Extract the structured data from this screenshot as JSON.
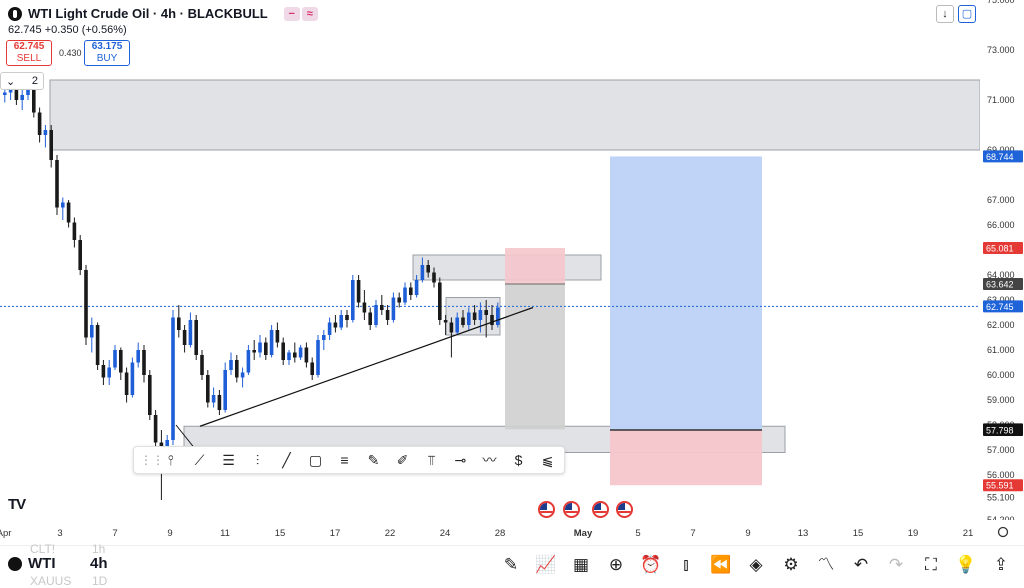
{
  "header": {
    "title": "WTI Light Crude Oil · 4h · BLACKBULL",
    "change_line": "62.745  +0.350 (+0.56%)",
    "sell_price": "62.745",
    "sell_label": "SELL",
    "spread": "0.430",
    "buy_price": "63.175",
    "buy_label": "BUY",
    "interval_count": "2",
    "icons": [
      "indicator-icon",
      "compare-icon"
    ]
  },
  "top_right": {
    "down_icon": "↓",
    "fullscreen_icon": "▢"
  },
  "colors": {
    "up": "#1e5fd8",
    "down": "#1a1a1a",
    "zone_fill": "#dcdde0",
    "target": "#bcd2f7",
    "stop": "#f5c6cc",
    "accent": "#1e63d8",
    "red_label": "#e53935"
  },
  "chart_data": {
    "type": "candlestick",
    "symbol": "WTI Light Crude Oil",
    "timeframe": "4h",
    "y_axis": {
      "ylim": [
        54.2,
        75.0
      ],
      "ticks": [
        "75.000",
        "73.000",
        "71.000",
        "69.000",
        "67.000",
        "66.000",
        "65.000",
        "64.000",
        "63.000",
        "62.000",
        "61.000",
        "60.000",
        "59.000",
        "58.000",
        "57.000",
        "56.000",
        "55.100",
        "54.200"
      ]
    },
    "x_axis": {
      "ticks": [
        "Apr",
        "3",
        "7",
        "9",
        "11",
        "15",
        "17",
        "22",
        "24",
        "28",
        "May",
        "5",
        "7",
        "9",
        "13",
        "15",
        "19",
        "21"
      ]
    },
    "price_labels": [
      {
        "text": "68.744",
        "value": 68.744,
        "color": "#1e63d8"
      },
      {
        "text": "65.081",
        "value": 65.081,
        "color": "#e53935"
      },
      {
        "text": "63.642",
        "value": 63.642,
        "color": "#444444"
      },
      {
        "text": "62.745",
        "value": 62.745,
        "color": "#1e63d8"
      },
      {
        "text": "57.825",
        "value": 57.825,
        "color": "#111111"
      },
      {
        "text": "57.798",
        "value": 57.798,
        "color": "#111111"
      },
      {
        "text": "55.591",
        "value": 55.591,
        "color": "#e53935"
      }
    ],
    "current_price": 62.745,
    "candles": [
      [
        71.2,
        71.6,
        70.9,
        71.3
      ],
      [
        71.3,
        71.9,
        71.0,
        71.5
      ],
      [
        71.5,
        71.7,
        70.8,
        71.0
      ],
      [
        71.0,
        71.4,
        70.6,
        71.2
      ],
      [
        71.2,
        72.0,
        71.0,
        71.6
      ],
      [
        71.6,
        71.8,
        70.3,
        70.5
      ],
      [
        70.5,
        70.7,
        69.3,
        69.6
      ],
      [
        69.6,
        70.0,
        69.1,
        69.8
      ],
      [
        69.8,
        70.0,
        68.3,
        68.6
      ],
      [
        68.6,
        68.8,
        66.4,
        66.7
      ],
      [
        66.7,
        67.1,
        66.2,
        66.9
      ],
      [
        66.9,
        67.0,
        65.9,
        66.1
      ],
      [
        66.1,
        66.3,
        65.1,
        65.4
      ],
      [
        65.4,
        65.6,
        64.0,
        64.2
      ],
      [
        64.2,
        64.4,
        61.2,
        61.5
      ],
      [
        61.5,
        62.3,
        60.9,
        62.0
      ],
      [
        62.0,
        62.1,
        60.2,
        60.4
      ],
      [
        60.4,
        60.6,
        59.6,
        59.9
      ],
      [
        59.9,
        60.6,
        59.6,
        60.3
      ],
      [
        60.3,
        61.2,
        60.2,
        61.0
      ],
      [
        61.0,
        61.1,
        59.8,
        60.1
      ],
      [
        60.1,
        60.3,
        58.9,
        59.2
      ],
      [
        59.2,
        60.7,
        59.1,
        60.5
      ],
      [
        60.5,
        61.3,
        60.3,
        61.0
      ],
      [
        61.0,
        61.2,
        59.7,
        60.0
      ],
      [
        60.0,
        60.2,
        58.2,
        58.4
      ],
      [
        58.4,
        58.6,
        57.0,
        57.3
      ],
      [
        57.3,
        57.8,
        55.0,
        56.9
      ],
      [
        56.9,
        57.6,
        56.6,
        57.4
      ],
      [
        57.4,
        62.6,
        57.2,
        62.3
      ],
      [
        62.3,
        62.8,
        61.5,
        61.8
      ],
      [
        61.8,
        62.0,
        60.9,
        61.2
      ],
      [
        61.2,
        62.5,
        61.1,
        62.2
      ],
      [
        62.2,
        62.4,
        60.6,
        60.8
      ],
      [
        60.8,
        61.0,
        59.8,
        60.0
      ],
      [
        60.0,
        60.2,
        58.7,
        58.9
      ],
      [
        58.9,
        59.5,
        58.7,
        59.2
      ],
      [
        59.2,
        59.4,
        58.4,
        58.6
      ],
      [
        58.6,
        60.5,
        58.5,
        60.2
      ],
      [
        60.2,
        60.9,
        60.0,
        60.6
      ],
      [
        60.6,
        60.8,
        59.7,
        59.9
      ],
      [
        59.9,
        60.3,
        59.5,
        60.1
      ],
      [
        60.1,
        61.2,
        60.0,
        61.0
      ],
      [
        61.0,
        61.4,
        60.6,
        60.9
      ],
      [
        60.9,
        61.6,
        60.7,
        61.3
      ],
      [
        61.3,
        61.5,
        60.6,
        60.8
      ],
      [
        60.8,
        62.0,
        60.7,
        61.8
      ],
      [
        61.8,
        62.1,
        61.1,
        61.3
      ],
      [
        61.3,
        61.5,
        60.4,
        60.6
      ],
      [
        60.6,
        61.0,
        60.4,
        60.9
      ],
      [
        60.9,
        61.3,
        60.5,
        60.7
      ],
      [
        60.7,
        61.2,
        60.6,
        61.1
      ],
      [
        61.1,
        61.3,
        60.3,
        60.5
      ],
      [
        60.5,
        60.7,
        59.8,
        60.0
      ],
      [
        60.0,
        61.6,
        59.9,
        61.4
      ],
      [
        61.4,
        61.8,
        61.0,
        61.6
      ],
      [
        61.6,
        62.3,
        61.4,
        62.1
      ],
      [
        62.1,
        62.4,
        61.7,
        61.9
      ],
      [
        61.9,
        62.6,
        61.8,
        62.4
      ],
      [
        62.4,
        62.6,
        61.9,
        62.2
      ],
      [
        62.2,
        64.0,
        62.1,
        63.8
      ],
      [
        63.8,
        64.0,
        62.7,
        62.9
      ],
      [
        62.9,
        63.4,
        62.2,
        62.5
      ],
      [
        62.5,
        62.7,
        61.8,
        62.0
      ],
      [
        62.0,
        63.0,
        61.9,
        62.8
      ],
      [
        62.8,
        63.2,
        62.4,
        62.6
      ],
      [
        62.6,
        62.8,
        62.0,
        62.2
      ],
      [
        62.2,
        63.3,
        62.1,
        63.1
      ],
      [
        63.1,
        63.3,
        62.7,
        62.9
      ],
      [
        62.9,
        63.7,
        62.8,
        63.5
      ],
      [
        63.5,
        63.7,
        63.0,
        63.2
      ],
      [
        63.2,
        64.0,
        63.1,
        63.8
      ],
      [
        63.8,
        64.7,
        63.7,
        64.4
      ],
      [
        64.4,
        64.6,
        63.9,
        64.1
      ],
      [
        64.1,
        64.3,
        63.5,
        63.7
      ],
      [
        63.7,
        63.9,
        62.0,
        62.2
      ],
      [
        62.2,
        62.4,
        61.6,
        62.1
      ],
      [
        62.1,
        62.3,
        60.7,
        61.7
      ],
      [
        61.7,
        62.5,
        61.6,
        62.3
      ],
      [
        62.3,
        62.6,
        61.9,
        62.0
      ],
      [
        62.0,
        62.7,
        61.8,
        62.5
      ],
      [
        62.5,
        62.8,
        62.0,
        62.2
      ],
      [
        62.2,
        62.9,
        61.7,
        62.6
      ],
      [
        62.6,
        63.0,
        61.5,
        62.4
      ],
      [
        62.4,
        62.8,
        61.8,
        62.0
      ],
      [
        62.0,
        62.9,
        61.9,
        62.7
      ]
    ],
    "zones": [
      {
        "name": "supply-zone-top",
        "x0": "apr-2",
        "x1": "end",
        "y0": 69.0,
        "y1": 71.8
      },
      {
        "name": "resistance-zone",
        "x0": "apr-23",
        "x1": "apr-30",
        "y0": 63.8,
        "y1": 64.8
      },
      {
        "name": "consolidation-box",
        "x0": "apr-24",
        "x1": "apr-28",
        "y0": 61.6,
        "y1": 63.1
      },
      {
        "name": "demand-zone",
        "x0": "apr-9",
        "x1": "may-11",
        "y0": 56.9,
        "y1": 57.95
      }
    ],
    "positions": [
      {
        "name": "short-position",
        "entry": 63.642,
        "stop": 65.081,
        "target": 57.825
      },
      {
        "name": "long-position",
        "entry": 57.798,
        "target": 68.744,
        "stop": 55.591
      }
    ]
  },
  "drawing_toolbar": {
    "tools": [
      "grip-icon",
      "cursor-icon",
      "trendline-icon",
      "fib-icon",
      "parallel-channel-icon",
      "ray-icon",
      "rectangle-icon",
      "text-lines-icon",
      "brush-icon",
      "highlighter-icon",
      "long-position-icon",
      "horizontal-line-icon",
      "path-icon",
      "price-label-icon",
      "projection-icon"
    ]
  },
  "bottom_bar": {
    "symbol": "WTI",
    "interval": "4h",
    "ghost_symbol_1": "CLT!",
    "ghost_symbol_2": "XAUUS",
    "ghost_interval_1": "1h",
    "ghost_interval_2": "1D",
    "icons": [
      "pencil-icon",
      "chart-line-icon",
      "grid-icon",
      "plus-circle-icon",
      "alarm-icon",
      "candles-icon",
      "replay-icon",
      "layers-icon",
      "settings-sliders-icon",
      "trend-icon",
      "undo-icon",
      "redo-icon",
      "fullscreen-icon",
      "ideas-icon",
      "share-icon"
    ]
  }
}
